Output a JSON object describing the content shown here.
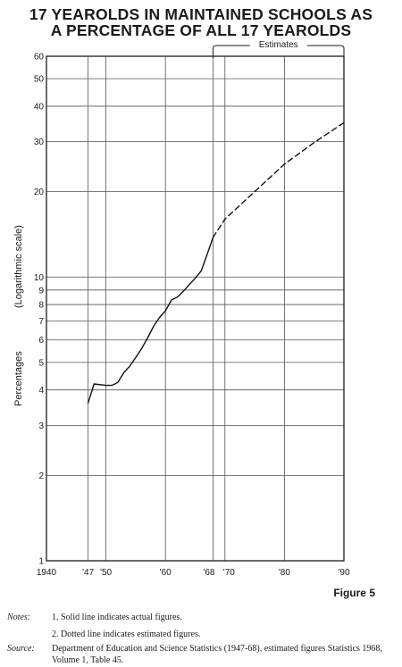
{
  "title_line1": "17 YEAROLDS IN MAINTAINED SCHOOLS AS",
  "title_line2": "A PERCENTAGE OF ALL 17 YEAROLDS",
  "figure_label": "Figure 5",
  "notes_label": "Notes:",
  "note1": "1. Solid line indicates actual figures.",
  "note2": "2. Dotted line indicates estimated figures.",
  "source_label": "Source:",
  "source_text": "Department of Education and Science Statistics (1947-68), estimated figures Statistics 1968, Volume 1, Table 45.",
  "chart_data": {
    "type": "line",
    "title": "17 YEAROLDS IN MAINTAINED SCHOOLS AS A PERCENTAGE OF ALL 17 YEAROLDS",
    "ylabel_main": "Percentages",
    "ylabel_sub": "(Logarithmic scale)",
    "y_scale": "log",
    "ylim": [
      1,
      60
    ],
    "xlim": [
      1940,
      1990
    ],
    "grid": true,
    "y_ticks": [
      1,
      2,
      3,
      4,
      5,
      6,
      7,
      8,
      9,
      10,
      20,
      30,
      40,
      50,
      60
    ],
    "y_tick_labels": [
      "1",
      "2",
      "3",
      "4",
      "5",
      "6",
      "7",
      "8",
      "9",
      "10",
      "20",
      "30",
      "40",
      "50",
      "60"
    ],
    "x_ticks": [
      1940,
      1947,
      1950,
      1960,
      1968,
      1970,
      1980,
      1990
    ],
    "x_tick_labels": [
      "1940",
      "'47",
      "'50",
      "'60",
      "'68",
      "'70",
      "'80",
      "'90"
    ],
    "estimates_bracket": {
      "label": "Estimates",
      "from": 1968,
      "to": 1990
    },
    "series": [
      {
        "name": "Actual figures",
        "style": "solid",
        "x": [
          1947,
          1948,
          1950,
          1951,
          1952,
          1953,
          1954,
          1955,
          1956,
          1957,
          1958,
          1959,
          1960,
          1961,
          1962,
          1963,
          1964,
          1965,
          1966,
          1967,
          1968
        ],
        "y": [
          3.6,
          4.2,
          4.15,
          4.15,
          4.25,
          4.6,
          4.85,
          5.2,
          5.6,
          6.1,
          6.7,
          7.2,
          7.6,
          8.3,
          8.5,
          8.9,
          9.4,
          9.9,
          10.5,
          12.0,
          13.8
        ]
      },
      {
        "name": "Estimated figures",
        "style": "dashed",
        "x": [
          1968,
          1970,
          1975,
          1980,
          1985,
          1990
        ],
        "y": [
          13.8,
          16.0,
          20.0,
          25.0,
          29.8,
          35.0
        ]
      }
    ]
  }
}
